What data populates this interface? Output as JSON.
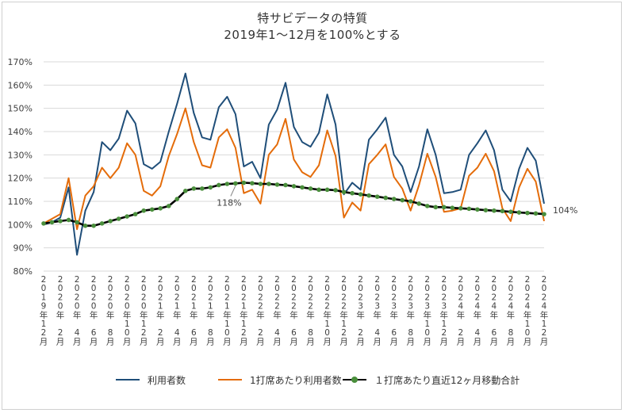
{
  "chart_data": {
    "type": "line",
    "title": "特サビデータの特質",
    "subtitle": "2019年1～12月を100%とする",
    "y_ticks": [
      "80%",
      "90%",
      "100%",
      "110%",
      "120%",
      "130%",
      "140%",
      "150%",
      "160%",
      "170%"
    ],
    "ylim": [
      80,
      170
    ],
    "grid": true,
    "legend_position": "bottom",
    "x": [
      "2019年12月",
      "2020年1月",
      "2020年2月",
      "2020年3月",
      "2020年4月",
      "2020年5月",
      "2020年6月",
      "2020年7月",
      "2020年8月",
      "2020年9月",
      "2020年10月",
      "2020年11月",
      "2020年12月",
      "2021年1月",
      "2021年2月",
      "2021年3月",
      "2021年4月",
      "2021年5月",
      "2021年6月",
      "2021年7月",
      "2021年8月",
      "2021年9月",
      "2021年10月",
      "2021年11月",
      "2021年12月",
      "2022年1月",
      "2022年2月",
      "2022年3月",
      "2022年4月",
      "2022年5月",
      "2022年6月",
      "2022年7月",
      "2022年8月",
      "2022年9月",
      "2022年10月",
      "2022年11月",
      "2022年12月",
      "2023年1月",
      "2023年2月",
      "2023年3月",
      "2023年4月",
      "2023年5月",
      "2023年6月",
      "2023年7月",
      "2023年8月",
      "2023年9月",
      "2023年10月",
      "2023年11月",
      "2023年12月",
      "2024年1月",
      "2024年2月",
      "2024年3月",
      "2024年4月",
      "2024年5月",
      "2024年6月",
      "2024年7月",
      "2024年8月",
      "2024年9月",
      "2024年10月",
      "2024年11月",
      "2024年12月"
    ],
    "x_tick_labels": [
      [
        "2",
        "0",
        "1",
        "9",
        "年",
        "1",
        "2",
        "月"
      ],
      [
        "2",
        "0",
        "2",
        "0",
        "年",
        "",
        "2",
        "月"
      ],
      [
        "2",
        "0",
        "2",
        "0",
        "年",
        "",
        "4",
        "月"
      ],
      [
        "2",
        "0",
        "2",
        "0",
        "年",
        "",
        "6",
        "月"
      ],
      [
        "2",
        "0",
        "2",
        "0",
        "年",
        "",
        "8",
        "月"
      ],
      [
        "2",
        "0",
        "2",
        "0",
        "年",
        "1",
        "0",
        "月"
      ],
      [
        "2",
        "0",
        "2",
        "0",
        "年",
        "1",
        "2",
        "月"
      ],
      [
        "2",
        "0",
        "2",
        "1",
        "年",
        "",
        "2",
        "月"
      ],
      [
        "2",
        "0",
        "2",
        "1",
        "年",
        "",
        "4",
        "月"
      ],
      [
        "2",
        "0",
        "2",
        "1",
        "年",
        "",
        "6",
        "月"
      ],
      [
        "2",
        "0",
        "2",
        "1",
        "年",
        "",
        "8",
        "月"
      ],
      [
        "2",
        "0",
        "2",
        "1",
        "年",
        "1",
        "0",
        "月"
      ],
      [
        "2",
        "0",
        "2",
        "1",
        "年",
        "1",
        "2",
        "月"
      ],
      [
        "2",
        "0",
        "2",
        "2",
        "年",
        "",
        "2",
        "月"
      ],
      [
        "2",
        "0",
        "2",
        "2",
        "年",
        "",
        "4",
        "月"
      ],
      [
        "2",
        "0",
        "2",
        "2",
        "年",
        "",
        "6",
        "月"
      ],
      [
        "2",
        "0",
        "2",
        "2",
        "年",
        "",
        "8",
        "月"
      ],
      [
        "2",
        "0",
        "2",
        "2",
        "年",
        "1",
        "0",
        "月"
      ],
      [
        "2",
        "0",
        "2",
        "2",
        "年",
        "1",
        "2",
        "月"
      ],
      [
        "2",
        "0",
        "2",
        "3",
        "年",
        "",
        "2",
        "月"
      ],
      [
        "2",
        "0",
        "2",
        "3",
        "年",
        "",
        "4",
        "月"
      ],
      [
        "2",
        "0",
        "2",
        "3",
        "年",
        "",
        "6",
        "月"
      ],
      [
        "2",
        "0",
        "2",
        "3",
        "年",
        "",
        "8",
        "月"
      ],
      [
        "2",
        "0",
        "2",
        "3",
        "年",
        "1",
        "0",
        "月"
      ],
      [
        "2",
        "0",
        "2",
        "3",
        "年",
        "1",
        "2",
        "月"
      ],
      [
        "2",
        "0",
        "2",
        "4",
        "年",
        "",
        "2",
        "月"
      ],
      [
        "2",
        "0",
        "2",
        "4",
        "年",
        "",
        "4",
        "月"
      ],
      [
        "2",
        "0",
        "2",
        "4",
        "年",
        "",
        "6",
        "月"
      ],
      [
        "2",
        "0",
        "2",
        "4",
        "年",
        "",
        "8",
        "月"
      ],
      [
        "2",
        "0",
        "2",
        "4",
        "年",
        "1",
        "0",
        "月"
      ],
      [
        "2",
        "0",
        "2",
        "4",
        "年",
        "1",
        "2",
        "月"
      ]
    ],
    "series": [
      {
        "name": "利用者数",
        "color": "#1f4e79",
        "values": [
          100,
          101,
          103,
          116,
          87,
          106,
          114,
          135.5,
          132,
          137,
          149,
          143.5,
          126,
          124,
          127,
          140,
          152,
          165,
          148,
          137.5,
          136.5,
          150.5,
          155,
          147.5,
          125,
          127,
          120,
          143,
          149.5,
          161,
          142,
          135.5,
          133.5,
          139.5,
          156,
          143,
          113,
          118,
          115,
          136.5,
          141,
          146,
          130,
          125,
          114,
          125,
          141,
          130,
          113.5,
          114,
          115,
          130,
          135,
          140.5,
          132,
          115,
          110,
          124,
          133,
          127.5,
          109
        ]
      },
      {
        "name": "1打席あたり利用者数",
        "color": "#e46c0a",
        "values": [
          100.5,
          102.5,
          104.5,
          120,
          98,
          112.5,
          116.5,
          124.5,
          120,
          124.5,
          135,
          130,
          114.5,
          112.5,
          116.5,
          129.5,
          139,
          150,
          135.5,
          125.5,
          124.5,
          137.5,
          141,
          133,
          113.5,
          115,
          109,
          130,
          134.5,
          145.5,
          128,
          122.5,
          120.5,
          125.5,
          140.5,
          129.5,
          103,
          109.5,
          106,
          126,
          130,
          134.5,
          120.5,
          115.5,
          106,
          117,
          130.5,
          120.5,
          105.5,
          106,
          107,
          121,
          124.5,
          130.5,
          123,
          107,
          101.5,
          116,
          124,
          118.5,
          101.5
        ]
      },
      {
        "name": "１打席あたり直近12ヶ月移動合計",
        "color": "#000000",
        "marker_color": "#4a8f3c",
        "values": [
          100.5,
          101,
          101.5,
          102,
          101,
          99.5,
          99.5,
          100.5,
          101.5,
          102.5,
          103.5,
          104.5,
          106,
          106.5,
          107,
          108,
          111,
          114.5,
          115.5,
          115.5,
          116,
          117,
          117.5,
          117.7,
          118,
          117.8,
          117.5,
          117.5,
          117.2,
          117,
          116.5,
          116,
          115.5,
          115,
          115,
          114.8,
          114,
          113.5,
          113,
          112.5,
          112,
          111.5,
          111,
          110.5,
          110,
          109,
          108,
          107.5,
          107.5,
          107.2,
          107,
          106.8,
          106.5,
          106.2,
          106,
          105.8,
          105.5,
          105.2,
          105,
          104.8,
          104.5
        ]
      }
    ],
    "annotations": [
      {
        "text": "118%",
        "x_index": 23,
        "value": 117.7
      },
      {
        "text": "104%",
        "x_index": 60,
        "value": 104.5
      }
    ]
  }
}
